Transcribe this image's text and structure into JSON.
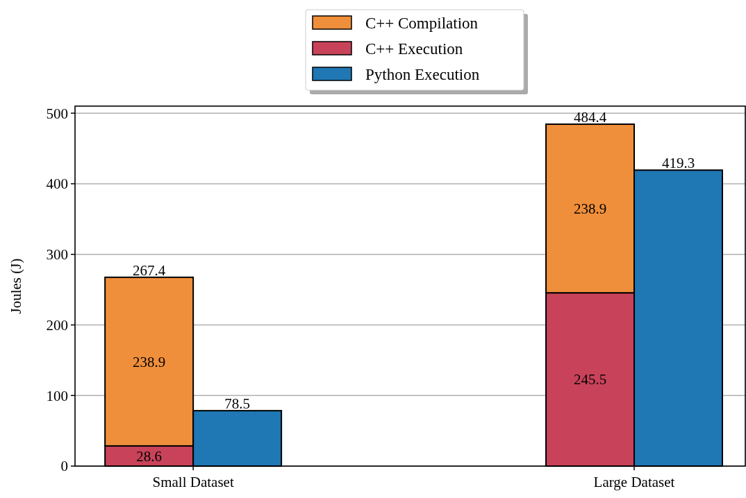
{
  "chart_data": {
    "type": "bar",
    "ylabel": "Joules (J)",
    "stacked": true,
    "categories": [
      "Small Dataset",
      null,
      null,
      null,
      null,
      "Large Dataset",
      null
    ],
    "series": [
      {
        "name": "C++ Execution",
        "color": "#c8435a",
        "values": [
          28.6,
          null,
          null,
          null,
          null,
          245.5,
          null
        ]
      },
      {
        "name": "C++ Compilation",
        "color": "#f08f3b",
        "values": [
          238.9,
          null,
          null,
          null,
          null,
          238.9,
          null
        ]
      },
      {
        "name": "Python Execution",
        "color": "#1f77b4",
        "values": [
          null,
          78.5,
          null,
          null,
          null,
          null,
          419.3
        ]
      }
    ],
    "totals": [
      "267.4",
      null,
      null,
      null,
      null,
      "484.4",
      null
    ],
    "data_labels": true,
    "ylim": [
      0,
      510
    ],
    "yticks": [
      0,
      100,
      200,
      300,
      400,
      500
    ],
    "grid": "y",
    "legend": "top"
  }
}
